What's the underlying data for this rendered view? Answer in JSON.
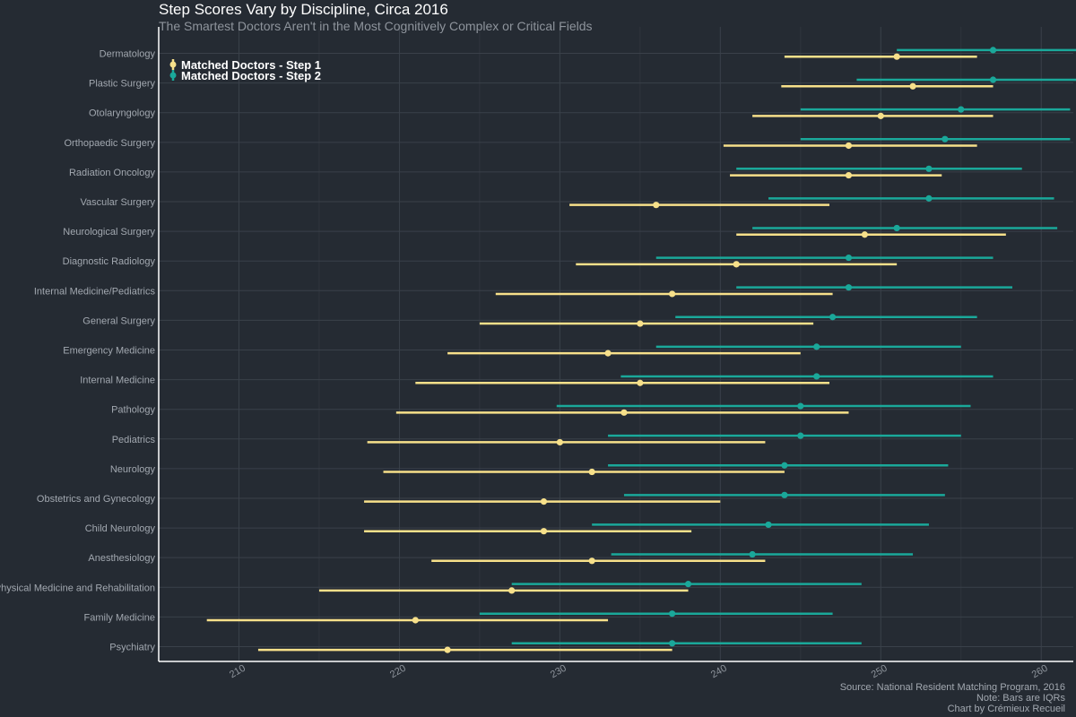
{
  "chart_data": {
    "type": "dot-range",
    "title": "Step Scores Vary by Discipline, Circa 2016",
    "subtitle": "The Smartest Doctors Aren't in the Most Cognitively Complex or Critical Fields",
    "xlim": [
      205,
      262
    ],
    "xticks": [
      210,
      220,
      230,
      240,
      250,
      260
    ],
    "grid": true,
    "legend_position": "top-left",
    "colors": {
      "step1": "#f7e08a",
      "step2": "#1aa89a"
    },
    "series": [
      {
        "key": "step1",
        "name": "Matched Doctors - Step 1"
      },
      {
        "key": "step2",
        "name": "Matched Doctors - Step 2"
      }
    ],
    "categories": [
      {
        "name": "Dermatology",
        "step1": {
          "low": 244,
          "mean": 251,
          "high": 256
        },
        "step2": {
          "low": 251,
          "mean": 257,
          "high": 265
        }
      },
      {
        "name": "Plastic Surgery",
        "step1": {
          "low": 243.8,
          "mean": 252,
          "high": 257
        },
        "step2": {
          "low": 248.5,
          "mean": 257,
          "high": 263.8
        }
      },
      {
        "name": "Otolaryngology",
        "step1": {
          "low": 242,
          "mean": 250,
          "high": 257
        },
        "step2": {
          "low": 245,
          "mean": 255,
          "high": 261.8
        }
      },
      {
        "name": "Orthopaedic Surgery",
        "step1": {
          "low": 240.2,
          "mean": 248,
          "high": 256
        },
        "step2": {
          "low": 245,
          "mean": 254,
          "high": 261.8
        }
      },
      {
        "name": "Radiation Oncology",
        "step1": {
          "low": 240.6,
          "mean": 248,
          "high": 253.8
        },
        "step2": {
          "low": 241,
          "mean": 253,
          "high": 258.8
        }
      },
      {
        "name": "Vascular Surgery",
        "step1": {
          "low": 230.6,
          "mean": 236,
          "high": 246.8
        },
        "step2": {
          "low": 243,
          "mean": 253,
          "high": 260.8
        }
      },
      {
        "name": "Neurological Surgery",
        "step1": {
          "low": 241,
          "mean": 249,
          "high": 257.8
        },
        "step2": {
          "low": 242,
          "mean": 251,
          "high": 261
        }
      },
      {
        "name": "Diagnostic Radiology",
        "step1": {
          "low": 231,
          "mean": 241,
          "high": 251
        },
        "step2": {
          "low": 236,
          "mean": 248,
          "high": 257
        }
      },
      {
        "name": "Internal Medicine/Pediatrics",
        "step1": {
          "low": 226,
          "mean": 237,
          "high": 247
        },
        "step2": {
          "low": 241,
          "mean": 248,
          "high": 258.2
        }
      },
      {
        "name": "General Surgery",
        "step1": {
          "low": 225,
          "mean": 235,
          "high": 245.8
        },
        "step2": {
          "low": 237.2,
          "mean": 247,
          "high": 256
        }
      },
      {
        "name": "Emergency Medicine",
        "step1": {
          "low": 223,
          "mean": 233,
          "high": 245
        },
        "step2": {
          "low": 236,
          "mean": 246,
          "high": 255
        }
      },
      {
        "name": "Internal Medicine",
        "step1": {
          "low": 221,
          "mean": 235,
          "high": 246.8
        },
        "step2": {
          "low": 233.8,
          "mean": 246,
          "high": 257
        }
      },
      {
        "name": "Pathology",
        "step1": {
          "low": 219.8,
          "mean": 234,
          "high": 248
        },
        "step2": {
          "low": 229.8,
          "mean": 245,
          "high": 255.6
        }
      },
      {
        "name": "Pediatrics",
        "step1": {
          "low": 218,
          "mean": 230,
          "high": 242.8
        },
        "step2": {
          "low": 233,
          "mean": 245,
          "high": 255
        }
      },
      {
        "name": "Neurology",
        "step1": {
          "low": 219,
          "mean": 232,
          "high": 244
        },
        "step2": {
          "low": 233,
          "mean": 244,
          "high": 254.2
        }
      },
      {
        "name": "Obstetrics and Gynecology",
        "step1": {
          "low": 217.8,
          "mean": 229,
          "high": 240
        },
        "step2": {
          "low": 234,
          "mean": 244,
          "high": 254
        }
      },
      {
        "name": "Child Neurology",
        "step1": {
          "low": 217.8,
          "mean": 229,
          "high": 238.2
        },
        "step2": {
          "low": 232,
          "mean": 243,
          "high": 253
        }
      },
      {
        "name": "Anesthesiology",
        "step1": {
          "low": 222,
          "mean": 232,
          "high": 242.8
        },
        "step2": {
          "low": 233.2,
          "mean": 242,
          "high": 252
        }
      },
      {
        "name": "Physical Medicine and Rehabilitation",
        "step1": {
          "low": 215,
          "mean": 227,
          "high": 238
        },
        "step2": {
          "low": 227,
          "mean": 238,
          "high": 248.8
        }
      },
      {
        "name": "Family Medicine",
        "step1": {
          "low": 208,
          "mean": 221,
          "high": 233
        },
        "step2": {
          "low": 225,
          "mean": 237,
          "high": 247
        }
      },
      {
        "name": "Psychiatry",
        "step1": {
          "low": 211.2,
          "mean": 223,
          "high": 237
        },
        "step2": {
          "low": 227,
          "mean": 237,
          "high": 248.8
        }
      }
    ],
    "caption": [
      "Source: National Resident Matching Program, 2016",
      "Note: Bars are IQRs",
      "Chart by Crémieux Recueil"
    ]
  }
}
